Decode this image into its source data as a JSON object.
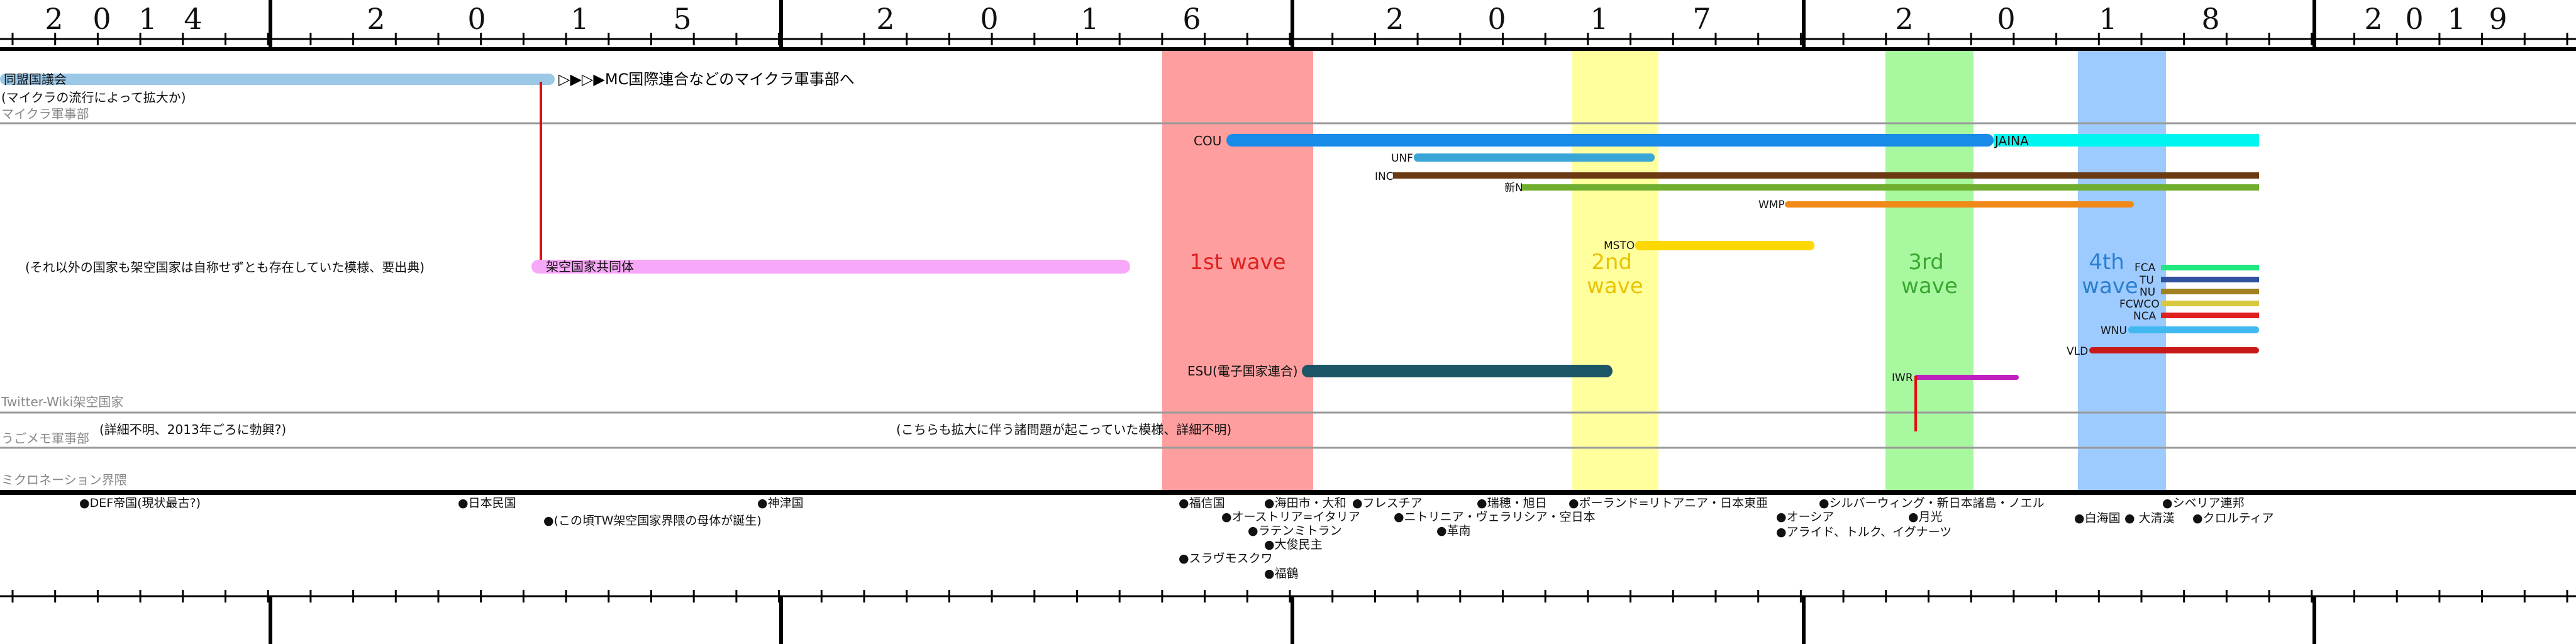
{
  "years": [
    {
      "label": "2014",
      "x": [
        86,
        162,
        235,
        307
      ]
    },
    {
      "label": "2015",
      "x": [
        598,
        758,
        922,
        1085
      ]
    },
    {
      "label": "2016",
      "x": [
        1408,
        1573,
        1733,
        1895
      ]
    },
    {
      "label": "2017",
      "x": [
        2218,
        2380,
        2543,
        2706
      ]
    },
    {
      "label": "2018",
      "x": [
        3028,
        3190,
        3352,
        3515
      ]
    },
    {
      "label": "2019",
      "x": [
        3774,
        3839,
        3906,
        3972
      ]
    }
  ],
  "sections": {
    "mc": "マイクラ軍事部",
    "twitter": "Twitter-Wiki架空国家",
    "ugo": "うごメモ軍事部",
    "micro": "ミクロネーション界隈"
  },
  "alliance": {
    "name": "同盟国議会",
    "note": "(マイクラの流行によって拡大か)",
    "arrow_text": "▷▶▷▶MC国際連合などのマイクラ軍事部へ"
  },
  "community": {
    "name": "架空国家共同体",
    "note": "(それ以外の国家も架空国家は自称せずとも存在していた模様、要出典)"
  },
  "ugo_note": "(詳細不明、2013年ごろに勃興?)",
  "ugo_note2": "(こちらも拡大に伴う諸問題が起こっていた模様、詳細不明)",
  "waves": [
    {
      "label": [
        "1st wave"
      ],
      "color": "#ff9e9e",
      "text_color": "#e02020"
    },
    {
      "label": [
        "2nd",
        "wave"
      ],
      "color": "#ffff9e",
      "text_color": "#e8c400"
    },
    {
      "label": [
        "3rd",
        "wave"
      ],
      "color": "#a8f8a0",
      "text_color": "#3aa830"
    },
    {
      "label": [
        "4th",
        "wave"
      ],
      "color": "#9ecbff",
      "text_color": "#2a7fd0"
    }
  ],
  "bars": [
    {
      "name": "COU",
      "color": "#1a8ae8"
    },
    {
      "name": "JAINA",
      "color": "#00f5f0"
    },
    {
      "name": "UNF",
      "color": "#3aa6d8"
    },
    {
      "name": "INC",
      "color": "#6b3a12"
    },
    {
      "name": "新N",
      "color": "#6fae2e"
    },
    {
      "name": "WMP",
      "color": "#ef8a18"
    },
    {
      "name": "MSTO",
      "color": "#ffd800"
    },
    {
      "name": "ESU(電子国家連合)",
      "color": "#1c5565"
    },
    {
      "name": "IWR",
      "color": "#c020c0"
    },
    {
      "name": "FCA",
      "color": "#20e880"
    },
    {
      "name": "TU",
      "color": "#3050a0"
    },
    {
      "name": "NU",
      "color": "#a08020"
    },
    {
      "name": "FCWCO",
      "color": "#d8c840"
    },
    {
      "name": "NCA",
      "color": "#e02020"
    },
    {
      "name": "WNU",
      "color": "#40b8f0"
    },
    {
      "name": "VLD",
      "color": "#c81818"
    }
  ],
  "events": [
    "●DEF帝国(現状最古?)",
    "●日本民国",
    "●(この頃TW架空国家界隈の母体が誕生)",
    "●神津国",
    "●福信国",
    "●海田市・大和",
    "●オーストリア=イタリア",
    "●ラテンミトラン",
    "●大俊民主",
    "●スラヴモスクワ",
    "●福鶴",
    "●フレスチア",
    "●瑞穂・旭日",
    "●ニトリニア・ヴェラリシア・空日本",
    "●革南",
    "●ポーランド=リトアニア・日本東亜",
    "●シルバーウィング・新日本諸島・ノエル",
    "●オーシア",
    "●月光",
    "●アライド、トルク、イグナーツ",
    "●シベリア連邦",
    "●白海国",
    "● 大清漢",
    "●クロルティア"
  ]
}
